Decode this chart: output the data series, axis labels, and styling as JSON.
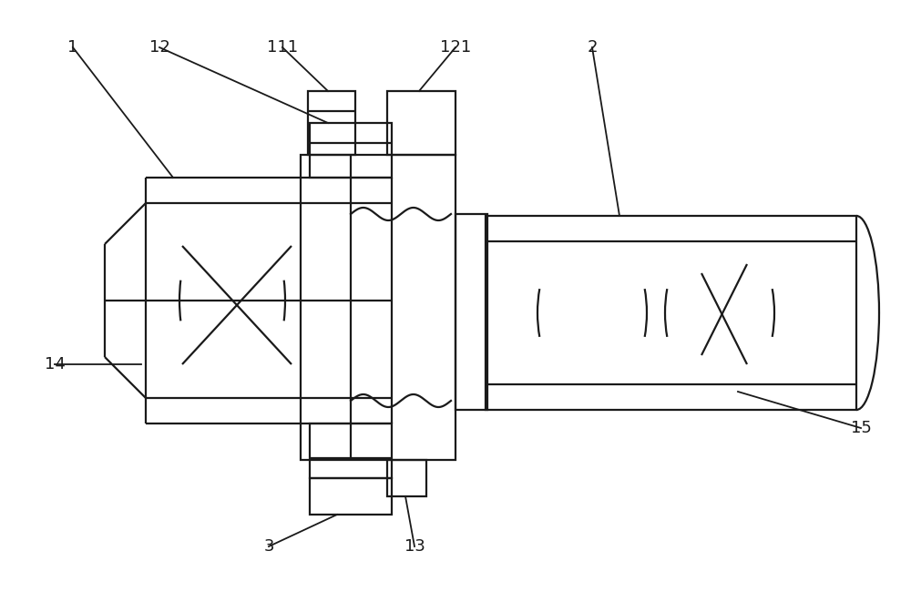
{
  "bg_color": "#ffffff",
  "line_color": "#1a1a1a",
  "lw": 1.6,
  "fig_width": 10.0,
  "fig_height": 6.61,
  "dpi": 100
}
